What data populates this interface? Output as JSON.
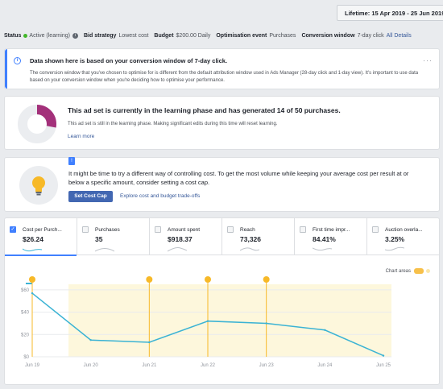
{
  "header": {
    "lifetime_label": "Lifetime: 15 Apr 2019 - 25 Jun 2019"
  },
  "status_bar": {
    "status_label": "Status",
    "status_value": "Active (learning)",
    "bid_label": "Bid strategy",
    "bid_value": "Lowest cost",
    "budget_label": "Budget",
    "budget_value": "$200.00 Daily",
    "event_label": "Optimisation event",
    "event_value": "Purchases",
    "window_label": "Conversion window",
    "window_value": "7-day click",
    "all_details": "All Details"
  },
  "notice": {
    "title": "Data shown here is based on your conversion window of 7-day click.",
    "body": "The conversion window that you've chosen to optimise for is different from the default attribution window used in Ads Manager (28-day click and 1-day view). It's important to use data based on your conversion window when you're deciding how to optimise your performance.",
    "more": "···"
  },
  "learning": {
    "title": "This ad set is currently in the learning phase and has generated 14 of 50 purchases.",
    "description": "This ad set is still in the learning phase. Making significant edits during this time will reset learning.",
    "link": "Learn more",
    "progress": 0.28,
    "progress_color": "#a3307a"
  },
  "cost_cap": {
    "badge": "!",
    "text": "It might be time to try a different way of controlling cost. To get the most volume while keeping your average cost per result at or below a specific amount, consider setting a cost cap.",
    "button": "Set Cost Cap",
    "explore": "Explore cost and budget trade-offs"
  },
  "metrics": {
    "tabs": [
      {
        "name": "Cost per Purch...",
        "value": "$26.24",
        "checked": true
      },
      {
        "name": "Purchases",
        "value": "35",
        "checked": false
      },
      {
        "name": "Amount spent",
        "value": "$918.37",
        "checked": false
      },
      {
        "name": "Reach",
        "value": "73,326",
        "checked": false
      },
      {
        "name": "First time impr...",
        "value": "84.41%",
        "checked": false
      },
      {
        "name": "Auction overla...",
        "value": "3.25%",
        "checked": false
      }
    ],
    "chart_areas_label": "Chart areas",
    "accent": "#4080ff",
    "line_color": "#3bb3d4",
    "area_color": "#fdf7dc"
  },
  "chart_data": {
    "type": "line",
    "categories": [
      "Jun 19",
      "Jun 20",
      "Jun 21",
      "Jun 22",
      "Jun 23",
      "Jun 24",
      "Jun 25"
    ],
    "x": [
      0,
      1,
      2,
      3,
      4,
      5,
      6
    ],
    "x_points": [
      -0.05,
      0.6,
      1.6,
      2.15,
      3.05,
      3.75,
      4.6,
      5.4
    ],
    "series": [
      {
        "values": [
          57,
          15,
          13,
          32,
          30,
          24,
          1
        ]
      }
    ],
    "y_ticks": [
      "$60",
      "$40",
      "$20",
      "$0"
    ],
    "ylim": [
      0,
      65
    ],
    "grid": true,
    "event_markers": [
      {
        "x": 0,
        "icon": "warning-icon"
      },
      {
        "x": 2,
        "icon": "edit-icon"
      },
      {
        "x": 3,
        "icon": "edit-icon"
      },
      {
        "x": 4,
        "icon": "edit-icon"
      }
    ]
  }
}
